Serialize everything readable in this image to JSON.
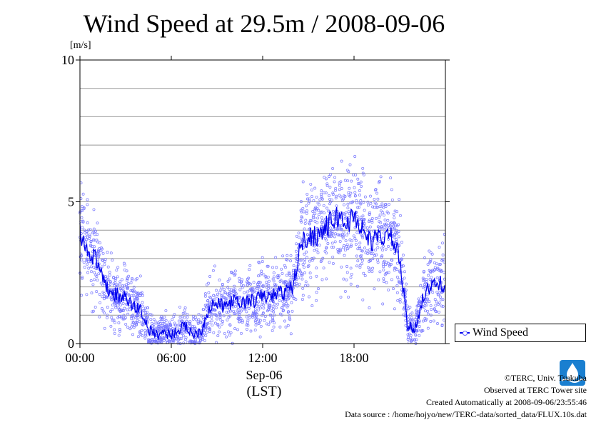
{
  "title": "Wind Speed at 29.5m / 2008-09-06",
  "unit": "[m/s]",
  "x_axis": {
    "date_label": "Sep-06",
    "unit_label": "(LST)"
  },
  "legend": {
    "label": "Wind Speed"
  },
  "credits": [
    "©TERC, Univ. Tsukuba",
    "Observed at TERC Tower site",
    "Created Automatically at 2008-09-06/23:55:46",
    "Data source : /home/hojyo/new/TERC-data/sorted_data/FLUX.10s.dat"
  ],
  "colors": {
    "line": "#0000ee",
    "scatter": "#7777ff",
    "grid": "#999999"
  },
  "chart_data": {
    "type": "line",
    "title": "Wind Speed at 29.5m / 2008-09-06",
    "ylabel": "[m/s]",
    "xlabel": "Sep-06 (LST)",
    "ylim": [
      0,
      10
    ],
    "xlim": [
      "00:00",
      "24:00"
    ],
    "y_ticks": [
      "0",
      "5",
      "10"
    ],
    "x_ticks": [
      "00:00",
      "06:00",
      "12:00",
      "18:00"
    ],
    "grid": true,
    "legend_position": "right",
    "series": [
      {
        "name": "Wind Speed",
        "x": [
          "00:00",
          "00:30",
          "01:00",
          "01:30",
          "02:00",
          "02:30",
          "03:00",
          "03:30",
          "04:00",
          "04:30",
          "05:00",
          "05:30",
          "06:00",
          "06:30",
          "07:00",
          "07:30",
          "08:00",
          "08:30",
          "09:00",
          "09:30",
          "10:00",
          "10:30",
          "11:00",
          "11:30",
          "12:00",
          "12:30",
          "13:00",
          "13:30",
          "14:00",
          "14:30",
          "15:00",
          "15:30",
          "16:00",
          "16:30",
          "17:00",
          "17:30",
          "18:00",
          "18:30",
          "19:00",
          "19:30",
          "20:00",
          "20:30",
          "21:00",
          "21:30",
          "22:00",
          "22:30",
          "23:00",
          "23:30"
        ],
        "values": [
          3.9,
          3.3,
          3.0,
          2.2,
          1.8,
          1.7,
          1.6,
          1.3,
          1.2,
          0.5,
          0.3,
          0.4,
          0.3,
          0.5,
          0.6,
          0.3,
          0.5,
          1.3,
          1.4,
          1.3,
          1.5,
          1.4,
          1.5,
          1.5,
          1.7,
          1.6,
          1.8,
          1.8,
          2.0,
          3.5,
          3.8,
          3.8,
          4.0,
          4.3,
          4.5,
          4.2,
          4.5,
          4.1,
          3.6,
          3.7,
          3.8,
          3.7,
          3.0,
          0.6,
          0.5,
          1.6,
          2.0,
          2.1
        ]
      }
    ]
  }
}
